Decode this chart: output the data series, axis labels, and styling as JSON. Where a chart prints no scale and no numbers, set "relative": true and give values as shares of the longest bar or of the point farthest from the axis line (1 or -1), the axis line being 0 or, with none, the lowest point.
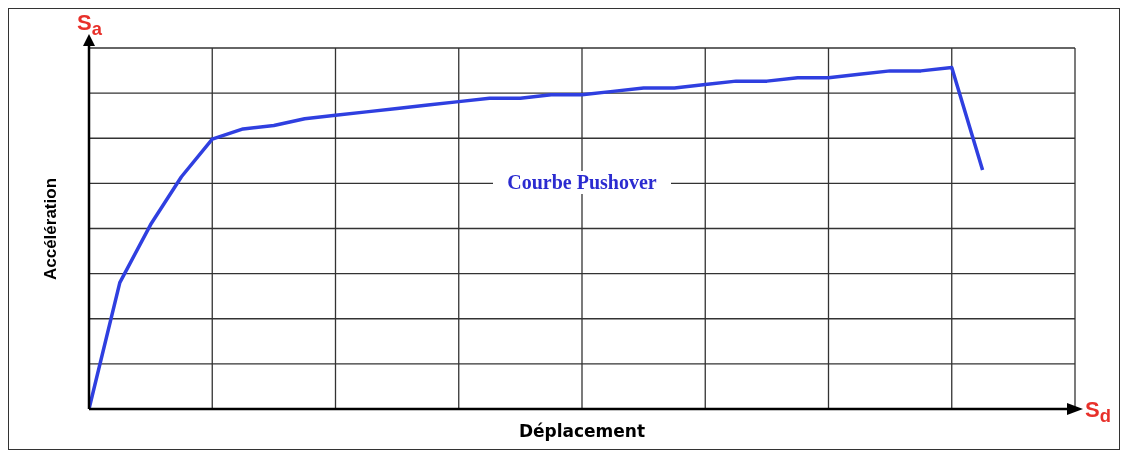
{
  "chart_data": {
    "type": "line",
    "relative": true,
    "xlabel": "Déplacement",
    "ylabel": "Accélération",
    "grid": true,
    "legend": false,
    "marker": "none",
    "line_style": "solid",
    "annotations": [
      "S$_{a}$",
      "S$_{d}$",
      "Courbe Pushover"
    ],
    "categories": [
      null,
      null,
      null,
      null,
      null,
      null,
      null,
      null,
      null,
      null,
      null,
      null,
      null,
      null,
      null,
      null,
      null,
      null,
      null,
      null,
      null,
      null,
      null,
      null,
      null,
      null,
      null,
      null,
      null,
      null
    ],
    "series": [
      {
        "color": "#2f3fe0",
        "values": [
          0,
          0.37,
          0.54,
          0.68,
          0.79,
          0.82,
          0.83,
          0.85,
          0.86,
          0.87,
          0.88,
          0.89,
          0.9,
          0.91,
          0.91,
          0.92,
          0.92,
          0.93,
          0.94,
          0.94,
          0.95,
          0.96,
          0.96,
          0.97,
          0.97,
          0.98,
          0.99,
          0.99,
          1.0,
          0.7
        ]
      }
    ]
  }
}
